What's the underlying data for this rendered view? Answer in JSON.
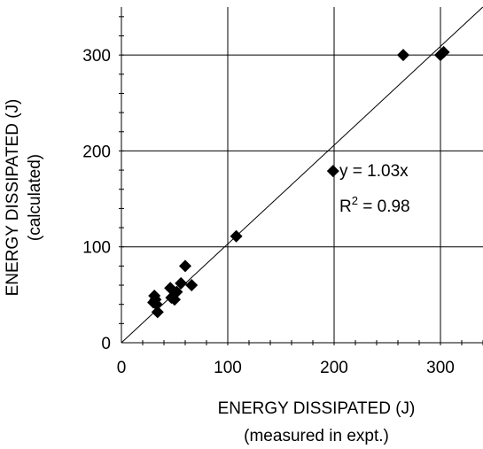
{
  "chart_data": {
    "type": "scatter",
    "title": "",
    "xlabel": "ENERGY DISSIPATED (J)",
    "xlabel_sub": "(measured in expt.)",
    "ylabel": "ENERGY DISSIPATED (J)",
    "ylabel_sub": "(calculated)",
    "xlim": [
      0,
      340
    ],
    "ylim": [
      0,
      350
    ],
    "x_ticks": [
      0,
      100,
      200,
      300
    ],
    "y_ticks": [
      0,
      100,
      200,
      300
    ],
    "x_tick_labels": [
      "0",
      "100",
      "200",
      "300"
    ],
    "y_tick_labels": [
      "0",
      "100",
      "200",
      "300"
    ],
    "grid": true,
    "marker": "diamond",
    "marker_color": "#000000",
    "series": [
      {
        "x": [
          30,
          31,
          32,
          33,
          34,
          46,
          47,
          50,
          52,
          56,
          60,
          66,
          108,
          199,
          265,
          300,
          303
        ],
        "y": [
          42,
          49,
          45,
          40,
          32,
          57,
          47,
          45,
          53,
          62,
          80,
          60,
          111,
          179,
          300,
          300,
          303
        ]
      }
    ],
    "fit_line": {
      "slope": 1.03,
      "intercept": 0
    },
    "annotations": {
      "equation": "y = 1.03x",
      "r2_prefix": "R",
      "r2_sup": "2",
      "r2_suffix": " = 0.98"
    }
  }
}
